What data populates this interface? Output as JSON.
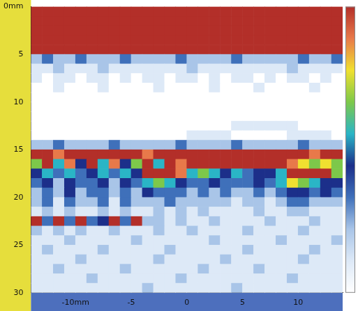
{
  "chart_data": {
    "type": "heatmap",
    "x": [
      -13.5,
      -12.5,
      -11.5,
      -10.5,
      -9.5,
      -8.5,
      -7.5,
      -6.5,
      -5.5,
      -4.5,
      -3.5,
      -2.5,
      -1.5,
      -0.5,
      0.5,
      1.5,
      2.5,
      3.5,
      4.5,
      5.5,
      6.5,
      7.5,
      8.5,
      9.5,
      10.5,
      11.5,
      12.5,
      13.5
    ],
    "y": [
      0.5,
      1.5,
      2.5,
      3.5,
      4.5,
      5.5,
      6.5,
      7.5,
      8.5,
      9.5,
      10.5,
      11.5,
      12.5,
      13.5,
      14.5,
      15.5,
      16.5,
      17.5,
      18.5,
      19.5,
      20.5,
      21.5,
      22.5,
      23.5,
      24.5,
      25.5,
      26.5,
      27.5,
      28.5,
      29.5
    ],
    "z": [
      [
        9,
        9,
        9,
        9,
        9,
        9,
        9,
        9,
        9,
        9,
        9,
        9,
        9,
        9,
        9,
        9,
        9,
        9,
        9,
        9,
        9,
        9,
        9,
        9,
        9,
        9,
        9,
        9
      ],
      [
        9,
        9,
        9,
        9,
        9,
        9,
        9,
        9,
        9,
        9,
        9,
        9,
        9,
        9,
        9,
        9,
        9,
        9,
        9,
        9,
        9,
        9,
        9,
        9,
        9,
        9,
        9,
        9
      ],
      [
        9,
        9,
        9,
        9,
        9,
        9,
        9,
        9,
        9,
        9,
        9,
        9,
        9,
        9,
        9,
        9,
        9,
        9,
        9,
        9,
        9,
        9,
        9,
        9,
        9,
        9,
        9,
        9
      ],
      [
        9,
        9,
        9,
        9,
        9,
        9,
        9,
        9,
        9,
        9,
        9,
        9,
        9,
        9,
        9,
        9,
        9,
        9,
        9,
        9,
        9,
        9,
        9,
        9,
        9,
        9,
        9,
        9
      ],
      [
        9,
        9,
        9,
        9,
        9,
        9,
        9,
        9,
        9,
        9,
        9,
        9,
        9,
        9,
        9,
        9,
        9,
        9,
        9,
        9,
        9,
        9,
        9,
        9,
        9,
        9,
        9,
        9
      ],
      [
        2,
        3,
        2,
        2,
        3,
        2,
        2,
        2,
        3,
        2,
        2,
        2,
        2,
        3,
        2,
        2,
        2,
        2,
        3,
        2,
        2,
        2,
        2,
        2,
        3,
        2,
        2,
        3
      ],
      [
        1,
        1,
        2,
        1,
        1,
        1,
        2,
        1,
        1,
        1,
        1,
        1,
        1,
        1,
        2,
        1,
        1,
        1,
        1,
        1,
        1,
        1,
        1,
        2,
        1,
        1,
        1,
        1
      ],
      [
        1,
        0,
        1,
        1,
        0,
        1,
        1,
        0,
        1,
        0,
        1,
        1,
        0,
        1,
        1,
        0,
        1,
        0,
        1,
        1,
        0,
        1,
        0,
        1,
        1,
        0,
        1,
        0
      ],
      [
        0,
        0,
        1,
        0,
        0,
        0,
        1,
        0,
        0,
        0,
        0,
        1,
        0,
        0,
        0,
        0,
        1,
        0,
        0,
        0,
        1,
        0,
        0,
        0,
        0,
        1,
        0,
        0
      ],
      [
        0,
        0,
        0,
        0,
        0,
        0,
        0,
        0,
        0,
        0,
        0,
        0,
        0,
        0,
        0,
        0,
        0,
        0,
        0,
        0,
        0,
        0,
        0,
        0,
        0,
        0,
        0,
        0
      ],
      [
        0,
        0,
        0,
        0,
        0,
        0,
        0,
        0,
        0,
        0,
        0,
        0,
        0,
        0,
        0,
        0,
        0,
        0,
        0,
        0,
        0,
        0,
        0,
        0,
        0,
        0,
        0,
        0
      ],
      [
        0,
        0,
        0,
        0,
        0,
        0,
        0,
        0,
        0,
        0,
        0,
        0,
        0,
        0,
        0,
        0,
        0,
        0,
        0,
        0,
        0,
        0,
        0,
        0,
        0,
        0,
        0,
        0
      ],
      [
        0,
        0,
        0,
        0,
        0,
        0,
        0,
        0,
        0,
        0,
        0,
        0,
        0,
        0,
        0,
        0,
        0,
        0,
        1,
        1,
        1,
        1,
        1,
        1,
        0,
        0,
        0,
        0
      ],
      [
        0,
        0,
        0,
        0,
        0,
        0,
        0,
        0,
        0,
        0,
        0,
        0,
        0,
        0,
        1,
        1,
        1,
        1,
        0,
        0,
        0,
        0,
        0,
        1,
        1,
        1,
        1,
        0
      ],
      [
        2,
        2,
        3,
        2,
        2,
        2,
        2,
        3,
        2,
        2,
        2,
        2,
        2,
        3,
        2,
        2,
        2,
        2,
        3,
        2,
        2,
        2,
        2,
        2,
        3,
        2,
        2,
        2
      ],
      [
        9,
        9,
        8,
        9,
        9,
        9,
        9,
        9,
        9,
        9,
        8,
        9,
        9,
        9,
        9,
        9,
        9,
        9,
        9,
        9,
        9,
        9,
        9,
        9,
        9,
        8,
        9,
        9
      ],
      [
        6,
        9,
        5,
        8,
        4,
        9,
        5,
        8,
        4,
        6,
        9,
        5,
        9,
        8,
        9,
        9,
        9,
        9,
        9,
        9,
        9,
        9,
        9,
        8,
        7,
        6,
        7,
        6
      ],
      [
        4,
        5,
        3,
        5,
        3,
        4,
        5,
        3,
        5,
        4,
        9,
        9,
        9,
        8,
        5,
        6,
        5,
        4,
        5,
        3,
        4,
        4,
        5,
        9,
        9,
        9,
        9,
        6
      ],
      [
        3,
        4,
        2,
        4,
        3,
        3,
        4,
        2,
        4,
        3,
        5,
        6,
        5,
        4,
        3,
        3,
        4,
        3,
        3,
        3,
        4,
        3,
        5,
        7,
        6,
        5,
        4,
        4
      ],
      [
        2,
        3,
        2,
        4,
        2,
        3,
        3,
        2,
        3,
        2,
        4,
        3,
        3,
        3,
        2,
        3,
        2,
        3,
        2,
        2,
        3,
        2,
        3,
        4,
        4,
        3,
        4,
        3
      ],
      [
        2,
        3,
        1,
        3,
        2,
        2,
        3,
        1,
        3,
        2,
        2,
        2,
        3,
        2,
        2,
        2,
        2,
        2,
        1,
        2,
        2,
        1,
        2,
        3,
        3,
        2,
        2,
        2
      ],
      [
        1,
        2,
        1,
        2,
        1,
        1,
        2,
        1,
        2,
        1,
        1,
        2,
        1,
        2,
        1,
        2,
        1,
        1,
        1,
        1,
        2,
        1,
        1,
        2,
        2,
        1,
        1,
        1
      ],
      [
        9,
        3,
        9,
        3,
        9,
        3,
        4,
        9,
        3,
        9,
        2,
        2,
        1,
        2,
        1,
        1,
        2,
        1,
        1,
        1,
        1,
        2,
        1,
        1,
        1,
        2,
        1,
        1
      ],
      [
        2,
        1,
        2,
        1,
        2,
        1,
        1,
        2,
        1,
        1,
        1,
        2,
        1,
        1,
        2,
        1,
        1,
        1,
        1,
        2,
        1,
        1,
        1,
        1,
        2,
        1,
        1,
        1
      ],
      [
        1,
        1,
        1,
        2,
        1,
        1,
        1,
        1,
        1,
        2,
        1,
        1,
        1,
        1,
        1,
        1,
        2,
        1,
        1,
        1,
        1,
        1,
        2,
        1,
        1,
        1,
        1,
        2
      ],
      [
        1,
        2,
        1,
        1,
        1,
        1,
        2,
        1,
        1,
        1,
        1,
        1,
        2,
        1,
        1,
        1,
        1,
        1,
        1,
        2,
        1,
        1,
        1,
        1,
        1,
        2,
        1,
        1
      ],
      [
        1,
        1,
        1,
        1,
        2,
        1,
        1,
        1,
        1,
        1,
        1,
        2,
        1,
        1,
        1,
        1,
        1,
        2,
        1,
        1,
        1,
        1,
        1,
        1,
        2,
        1,
        1,
        1
      ],
      [
        1,
        1,
        2,
        1,
        1,
        1,
        1,
        1,
        2,
        1,
        1,
        1,
        1,
        1,
        1,
        2,
        1,
        1,
        1,
        1,
        2,
        1,
        1,
        1,
        1,
        1,
        1,
        1
      ],
      [
        1,
        1,
        1,
        1,
        1,
        2,
        1,
        1,
        1,
        1,
        1,
        1,
        1,
        2,
        1,
        1,
        1,
        1,
        1,
        1,
        1,
        1,
        1,
        2,
        1,
        1,
        1,
        1
      ],
      [
        1,
        1,
        1,
        1,
        1,
        1,
        1,
        1,
        1,
        1,
        2,
        1,
        1,
        1,
        1,
        1,
        1,
        1,
        2,
        1,
        1,
        1,
        1,
        1,
        1,
        1,
        1,
        1
      ]
    ],
    "zlim": [
      0,
      9
    ],
    "xlim": [
      -14,
      14
    ],
    "xticks": [
      {
        "value": -10,
        "label": "-10mm"
      },
      -5,
      0,
      5,
      10
    ],
    "ylim": [
      0,
      30
    ],
    "yticks": [
      {
        "value": 0,
        "label": "0mm"
      },
      5,
      10,
      15,
      20,
      25,
      30
    ],
    "grid": false
  }
}
